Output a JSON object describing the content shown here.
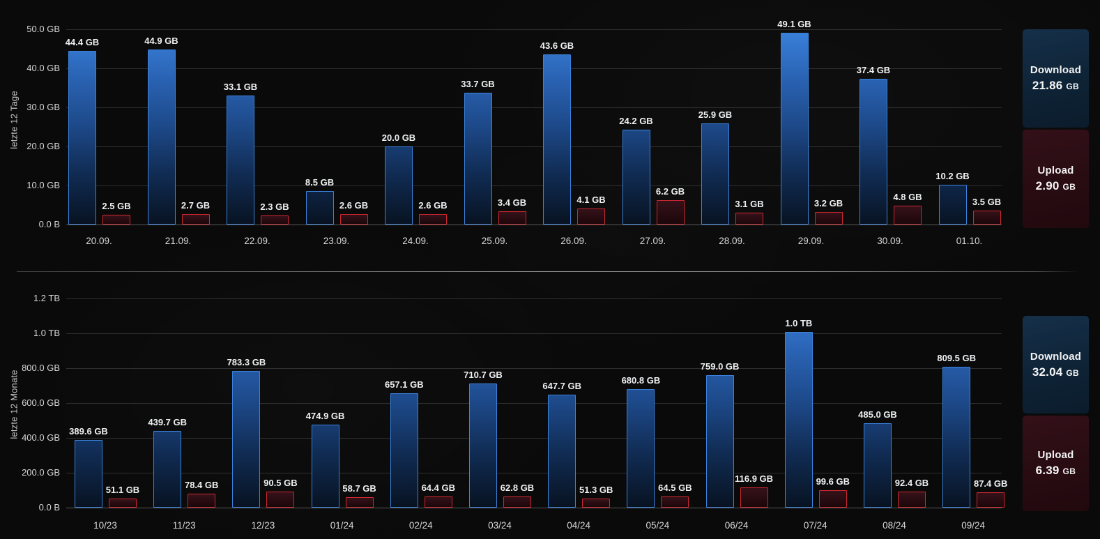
{
  "colors": {
    "download_accent": "#3b82dc",
    "upload_accent": "#cd2730",
    "background": "#0a0a0a"
  },
  "chart_data": [
    {
      "type": "bar",
      "title": "letzte 12 Tage",
      "grid": true,
      "ylim_gb": [
        0,
        50
      ],
      "y_ticks": [
        {
          "label": "0.0 B",
          "gb": 0
        },
        {
          "label": "10.0 GB",
          "gb": 10
        },
        {
          "label": "20.0 GB",
          "gb": 20
        },
        {
          "label": "30.0 GB",
          "gb": 30
        },
        {
          "label": "40.0 GB",
          "gb": 40
        },
        {
          "label": "50.0 GB",
          "gb": 50
        }
      ],
      "categories": [
        "20.09.",
        "21.09.",
        "22.09.",
        "23.09.",
        "24.09.",
        "25.09.",
        "26.09.",
        "27.09.",
        "28.09.",
        "29.09.",
        "30.09.",
        "01.10."
      ],
      "series": [
        {
          "name": "Download",
          "values_gb": [
            44.4,
            44.9,
            33.1,
            8.5,
            20.0,
            33.7,
            43.6,
            24.2,
            25.9,
            49.1,
            37.4,
            10.2
          ],
          "labels": [
            "44.4 GB",
            "44.9 GB",
            "33.1 GB",
            "8.5 GB",
            "20.0 GB",
            "33.7 GB",
            "43.6 GB",
            "24.2 GB",
            "25.9 GB",
            "49.1 GB",
            "37.4 GB",
            "10.2 GB"
          ]
        },
        {
          "name": "Upload",
          "values_gb": [
            2.5,
            2.7,
            2.3,
            2.6,
            2.6,
            3.4,
            4.1,
            6.2,
            3.1,
            3.2,
            4.8,
            3.5
          ],
          "labels": [
            "2.5 GB",
            "2.7 GB",
            "2.3 GB",
            "2.6 GB",
            "2.6 GB",
            "3.4 GB",
            "4.1 GB",
            "6.2 GB",
            "3.1 GB",
            "3.2 GB",
            "4.8 GB",
            "3.5 GB"
          ]
        }
      ],
      "legend": {
        "position": "right",
        "download_label": "Download",
        "download_total": "21.86",
        "download_unit": "GB",
        "upload_label": "Upload",
        "upload_total": "2.90",
        "upload_unit": "GB"
      }
    },
    {
      "type": "bar",
      "title": "letzte 12 Monate",
      "grid": true,
      "ylim_gb": [
        0,
        1200
      ],
      "y_ticks": [
        {
          "label": "0.0 B",
          "gb": 0
        },
        {
          "label": "200.0 GB",
          "gb": 200
        },
        {
          "label": "400.0 GB",
          "gb": 400
        },
        {
          "label": "600.0 GB",
          "gb": 600
        },
        {
          "label": "800.0 GB",
          "gb": 800
        },
        {
          "label": "1.0 TB",
          "gb": 1000
        },
        {
          "label": "1.2 TB",
          "gb": 1200
        }
      ],
      "categories": [
        "10/23",
        "11/23",
        "12/23",
        "01/24",
        "02/24",
        "03/24",
        "04/24",
        "05/24",
        "06/24",
        "07/24",
        "08/24",
        "09/24"
      ],
      "series": [
        {
          "name": "Download",
          "values_gb": [
            389.6,
            439.7,
            783.3,
            474.9,
            657.1,
            710.7,
            647.7,
            680.8,
            759.0,
            1010,
            485.0,
            809.5
          ],
          "labels": [
            "389.6 GB",
            "439.7 GB",
            "783.3 GB",
            "474.9 GB",
            "657.1 GB",
            "710.7 GB",
            "647.7 GB",
            "680.8 GB",
            "759.0 GB",
            "1.0 TB",
            "485.0 GB",
            "809.5 GB"
          ]
        },
        {
          "name": "Upload",
          "values_gb": [
            51.1,
            78.4,
            90.5,
            58.7,
            64.4,
            62.8,
            51.3,
            64.5,
            116.9,
            99.6,
            92.4,
            87.4
          ],
          "labels": [
            "51.1 GB",
            "78.4 GB",
            "90.5 GB",
            "58.7 GB",
            "64.4 GB",
            "62.8 GB",
            "51.3 GB",
            "64.5 GB",
            "116.9 GB",
            "99.6 GB",
            "92.4 GB",
            "87.4 GB"
          ]
        }
      ],
      "legend": {
        "position": "right",
        "download_label": "Download",
        "download_total": "32.04",
        "download_unit": "GB",
        "upload_label": "Upload",
        "upload_total": "6.39",
        "upload_unit": "GB"
      }
    }
  ]
}
